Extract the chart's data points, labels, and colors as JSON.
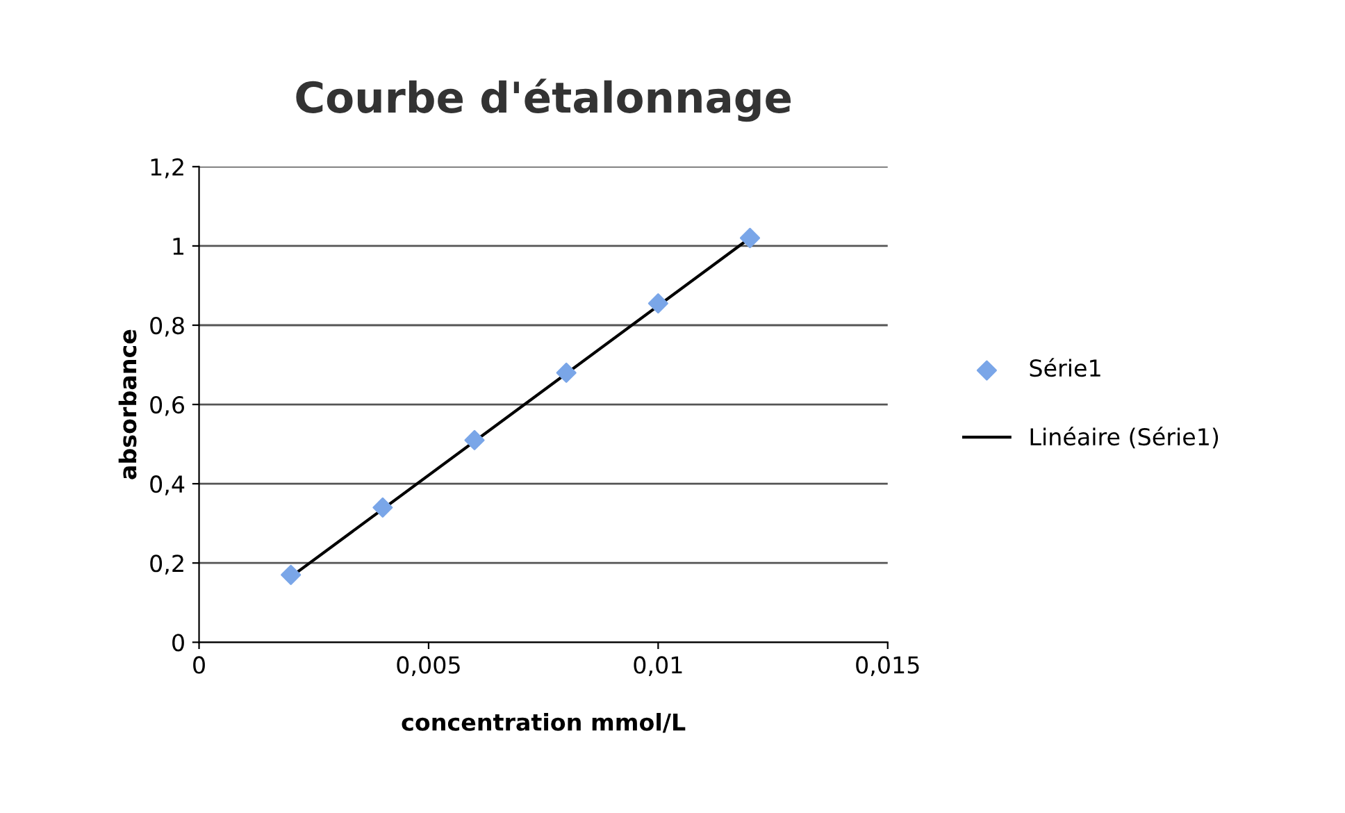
{
  "chart_data": {
    "type": "scatter",
    "title": "Courbe d'étalonnage",
    "xlabel": "concentration mmol/L",
    "ylabel": "absorbance",
    "series": [
      {
        "name": "Série1",
        "color": "#7aa6e8",
        "marker": "diamond",
        "x": [
          0.002,
          0.004,
          0.006,
          0.008,
          0.01,
          0.012
        ],
        "values": [
          0.17,
          0.34,
          0.51,
          0.68,
          0.855,
          1.02
        ]
      },
      {
        "name": "Linéaire (Série1)",
        "type": "line",
        "color": "#000000",
        "line_style": "solid",
        "x": [
          0.002,
          0.012
        ],
        "values": [
          0.165,
          1.02
        ]
      }
    ],
    "xlim": [
      0,
      0.015
    ],
    "xticks": [
      {
        "value": 0,
        "label": "0"
      },
      {
        "value": 0.005,
        "label": "0,005"
      },
      {
        "value": 0.01,
        "label": "0,01"
      },
      {
        "value": 0.015,
        "label": "0,015"
      }
    ],
    "ylim": [
      0,
      1.2
    ],
    "yticks": [
      {
        "value": 0,
        "label": "0"
      },
      {
        "value": 0.2,
        "label": "0,2"
      },
      {
        "value": 0.4,
        "label": "0,4"
      },
      {
        "value": 0.6,
        "label": "0,6"
      },
      {
        "value": 0.8,
        "label": "0,8"
      },
      {
        "value": 1,
        "label": "1"
      },
      {
        "value": 1.2,
        "label": "1,2"
      }
    ],
    "grid": "y",
    "legend": "right"
  }
}
